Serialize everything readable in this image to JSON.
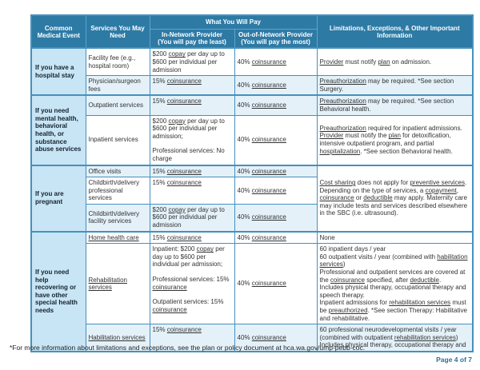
{
  "colors": {
    "header_bg": "#2D7AA5",
    "header_border": "#5FA5C9",
    "cell_border": "#4690BD",
    "event_bg": "#C7E5F5",
    "tint_bg": "#E4F1F9",
    "text": "#333333",
    "page_label": "#2A6F9E"
  },
  "footer": {
    "footnote": "*For more information about limitations and exceptions, see the plan or policy document at hca.wa.gov/ump-pebb-coc.",
    "page_label": "Page 4 of 7"
  },
  "table": {
    "header": {
      "event": "Common Medical Event",
      "services": "Services You May Need",
      "pay_group": "What You Will Pay",
      "in_network_title": "In-Network Provider",
      "in_network_sub": "(You will pay the least)",
      "out_network_title": "Out-of-Network Provider",
      "out_network_sub": "(You will pay the most)",
      "limitations": "Limitations, Exceptions, & Other Important Information"
    },
    "sections": [
      {
        "event": "If you have a hospital stay",
        "rows": [
          {
            "tint": false,
            "service": [
              {
                "segs": [
                  {
                    "t": "Facility fee (e.g., hospital room)"
                  }
                ]
              }
            ],
            "in_network": [
              {
                "segs": [
                  {
                    "t": "$200 "
                  },
                  {
                    "t": "copay",
                    "u": true
                  },
                  {
                    "t": " per day up to $600 per individual per admission"
                  }
                ]
              }
            ],
            "out_network": [
              {
                "segs": [
                  {
                    "t": "40% "
                  },
                  {
                    "t": "coinsurance",
                    "u": true
                  }
                ]
              }
            ],
            "limitation": [
              {
                "segs": [
                  {
                    "t": "Provider",
                    "u": true
                  },
                  {
                    "t": " must notify "
                  },
                  {
                    "t": "plan",
                    "u": true
                  },
                  {
                    "t": " on admission."
                  }
                ]
              }
            ]
          },
          {
            "tint": true,
            "service": [
              {
                "segs": [
                  {
                    "t": "Physician/surgeon fees"
                  }
                ]
              }
            ],
            "in_network": [
              {
                "segs": [
                  {
                    "t": "15% "
                  },
                  {
                    "t": "coinsurance",
                    "u": true
                  }
                ]
              }
            ],
            "out_network": [
              {
                "segs": [
                  {
                    "t": "40% "
                  },
                  {
                    "t": "coinsurance",
                    "u": true
                  }
                ]
              }
            ],
            "limitation": [
              {
                "segs": [
                  {
                    "t": "Preauthorization",
                    "u": true
                  },
                  {
                    "t": " may be required. *See section Surgery."
                  }
                ]
              }
            ]
          }
        ]
      },
      {
        "event": "If you need mental health, behavioral health, or substance abuse services",
        "rows": [
          {
            "tint": true,
            "service": [
              {
                "segs": [
                  {
                    "t": "Outpatient services"
                  }
                ]
              }
            ],
            "in_network": [
              {
                "segs": [
                  {
                    "t": "15% "
                  },
                  {
                    "t": "coinsurance",
                    "u": true
                  }
                ]
              }
            ],
            "out_network": [
              {
                "segs": [
                  {
                    "t": "40% "
                  },
                  {
                    "t": "coinsurance",
                    "u": true
                  }
                ]
              }
            ],
            "limitation": [
              {
                "segs": [
                  {
                    "t": "Preauthorization",
                    "u": true
                  },
                  {
                    "t": " may be required. *See section Behavioral health."
                  }
                ]
              }
            ]
          },
          {
            "tint": false,
            "service": [
              {
                "segs": [
                  {
                    "t": "Inpatient services"
                  }
                ]
              }
            ],
            "in_network": [
              {
                "segs": [
                  {
                    "t": "$200 "
                  },
                  {
                    "t": "copay",
                    "u": true
                  },
                  {
                    "t": " per day up to $600 per individual per admission;"
                  }
                ]
              },
              {
                "gap": true,
                "segs": [
                  {
                    "t": "Professional services: No charge"
                  }
                ]
              }
            ],
            "out_network": [
              {
                "segs": [
                  {
                    "t": "40% "
                  },
                  {
                    "t": "coinsurance",
                    "u": true
                  }
                ]
              }
            ],
            "limitation": [
              {
                "segs": [
                  {
                    "t": "Preauthorization",
                    "u": true
                  },
                  {
                    "t": " required for inpatient admissions. "
                  },
                  {
                    "t": "Provider",
                    "u": true
                  },
                  {
                    "t": " must notify the "
                  },
                  {
                    "t": "plan",
                    "u": true
                  },
                  {
                    "t": " for detoxification, intensive outpatient program, and partial "
                  },
                  {
                    "t": "hospitalization",
                    "u": true
                  },
                  {
                    "t": ". *See section Behavioral health."
                  }
                ]
              }
            ]
          }
        ]
      },
      {
        "event": "If you are pregnant",
        "shared_limitation": [
          {
            "segs": [
              {
                "t": "Cost sharing",
                "u": true
              },
              {
                "t": " does not apply for "
              },
              {
                "t": "preventive services",
                "u": true
              },
              {
                "t": ". Depending on the type of services, a "
              },
              {
                "t": "copayment",
                "u": true
              },
              {
                "t": ", "
              },
              {
                "t": "coinsurance",
                "u": true
              },
              {
                "t": " or "
              },
              {
                "t": "deductible",
                "u": true
              },
              {
                "t": " may apply. Maternity care may include tests and services described elsewhere in the SBC (i.e. ultrasound)."
              }
            ]
          }
        ],
        "rows": [
          {
            "tint": true,
            "service": [
              {
                "segs": [
                  {
                    "t": "Office visits"
                  }
                ]
              }
            ],
            "in_network": [
              {
                "segs": [
                  {
                    "t": "15% "
                  },
                  {
                    "t": "coinsurance",
                    "u": true
                  }
                ]
              }
            ],
            "out_network": [
              {
                "segs": [
                  {
                    "t": "40% "
                  },
                  {
                    "t": "coinsurance",
                    "u": true
                  }
                ]
              }
            ]
          },
          {
            "tint": false,
            "service": [
              {
                "segs": [
                  {
                    "t": "Childbirth/delivery professional services"
                  }
                ]
              }
            ],
            "in_network": [
              {
                "segs": [
                  {
                    "t": "15% "
                  },
                  {
                    "t": "coinsurance",
                    "u": true
                  }
                ]
              }
            ],
            "out_network": [
              {
                "segs": [
                  {
                    "t": "40% "
                  },
                  {
                    "t": "coinsurance",
                    "u": true
                  }
                ]
              }
            ]
          },
          {
            "tint": true,
            "service": [
              {
                "segs": [
                  {
                    "t": "Childbirth/delivery facility services"
                  }
                ]
              }
            ],
            "in_network": [
              {
                "segs": [
                  {
                    "t": "$200 "
                  },
                  {
                    "t": "copay",
                    "u": true
                  },
                  {
                    "t": " per day up to $600 per individual per admission"
                  }
                ]
              }
            ],
            "out_network": [
              {
                "segs": [
                  {
                    "t": "40% "
                  },
                  {
                    "t": "coinsurance",
                    "u": true
                  }
                ]
              }
            ]
          }
        ]
      },
      {
        "event": "If you need help recovering or have other special health needs",
        "rows": [
          {
            "tint": false,
            "service": [
              {
                "segs": [
                  {
                    "t": "Home health care",
                    "u": true
                  }
                ]
              }
            ],
            "in_network": [
              {
                "segs": [
                  {
                    "t": "15% "
                  },
                  {
                    "t": "coinsurance",
                    "u": true
                  }
                ]
              }
            ],
            "out_network": [
              {
                "segs": [
                  {
                    "t": "40% "
                  },
                  {
                    "t": "coinsurance",
                    "u": true
                  }
                ]
              }
            ],
            "limitation": [
              {
                "segs": [
                  {
                    "t": "None"
                  }
                ]
              }
            ]
          },
          {
            "tint": false,
            "service": [
              {
                "segs": [
                  {
                    "t": "Rehabilitation services",
                    "u": true
                  }
                ]
              }
            ],
            "in_network": [
              {
                "segs": [
                  {
                    "t": "Inpatient:  $200 "
                  },
                  {
                    "t": "copay",
                    "u": true
                  },
                  {
                    "t": " per day up to $600 per individual per admission;"
                  }
                ]
              },
              {
                "gap": true,
                "segs": [
                  {
                    "t": "Professional services:  15% "
                  },
                  {
                    "t": "coinsurance",
                    "u": true
                  }
                ]
              },
              {
                "gap": true,
                "segs": [
                  {
                    "t": "Outpatient services:  15% "
                  },
                  {
                    "t": "coinsurance",
                    "u": true
                  }
                ]
              }
            ],
            "out_network": [
              {
                "segs": [
                  {
                    "t": "40% "
                  },
                  {
                    "t": "coinsurance",
                    "u": true
                  }
                ]
              }
            ],
            "limitation": [
              {
                "segs": [
                  {
                    "t": "60 inpatient days / year"
                  }
                ]
              },
              {
                "segs": [
                  {
                    "t": "60 outpatient visits / year (combined with "
                  },
                  {
                    "t": "habilitation services",
                    "u": true
                  },
                  {
                    "t": ")"
                  }
                ]
              },
              {
                "segs": [
                  {
                    "t": "Professional and outpatient services are covered at the "
                  },
                  {
                    "t": "coinsurance",
                    "u": true
                  },
                  {
                    "t": " specified, after "
                  },
                  {
                    "t": "deductible",
                    "u": true
                  },
                  {
                    "t": "."
                  }
                ]
              },
              {
                "segs": [
                  {
                    "t": "Includes physical therapy, occupational therapy and speech therapy."
                  }
                ]
              },
              {
                "segs": [
                  {
                    "t": "Inpatient admissions for "
                  },
                  {
                    "t": "rehabilitation services",
                    "u": true
                  },
                  {
                    "t": " must be "
                  },
                  {
                    "t": "preauthorized",
                    "u": true
                  },
                  {
                    "t": ". *See section Therapy: Habilitative and rehabilitative."
                  }
                ]
              }
            ]
          },
          {
            "tint": true,
            "service": [
              {
                "segs": [
                  {
                    "t": "Habilitation services",
                    "u": true
                  }
                ]
              }
            ],
            "in_network": [
              {
                "segs": [
                  {
                    "t": "15% "
                  },
                  {
                    "t": "coinsurance",
                    "u": true
                  }
                ]
              }
            ],
            "out_network": [
              {
                "segs": [
                  {
                    "t": "40% "
                  },
                  {
                    "t": "coinsurance",
                    "u": true
                  }
                ]
              }
            ],
            "limitation": [
              {
                "segs": [
                  {
                    "t": "60 professional neurodevelopmental visits / year (combined with outpatient "
                  },
                  {
                    "t": "rehabilitation services",
                    "u": true
                  },
                  {
                    "t": ")"
                  }
                ]
              },
              {
                "segs": [
                  {
                    "t": "Includes physical therapy, occupational therapy and"
                  }
                ]
              }
            ]
          }
        ]
      }
    ]
  }
}
